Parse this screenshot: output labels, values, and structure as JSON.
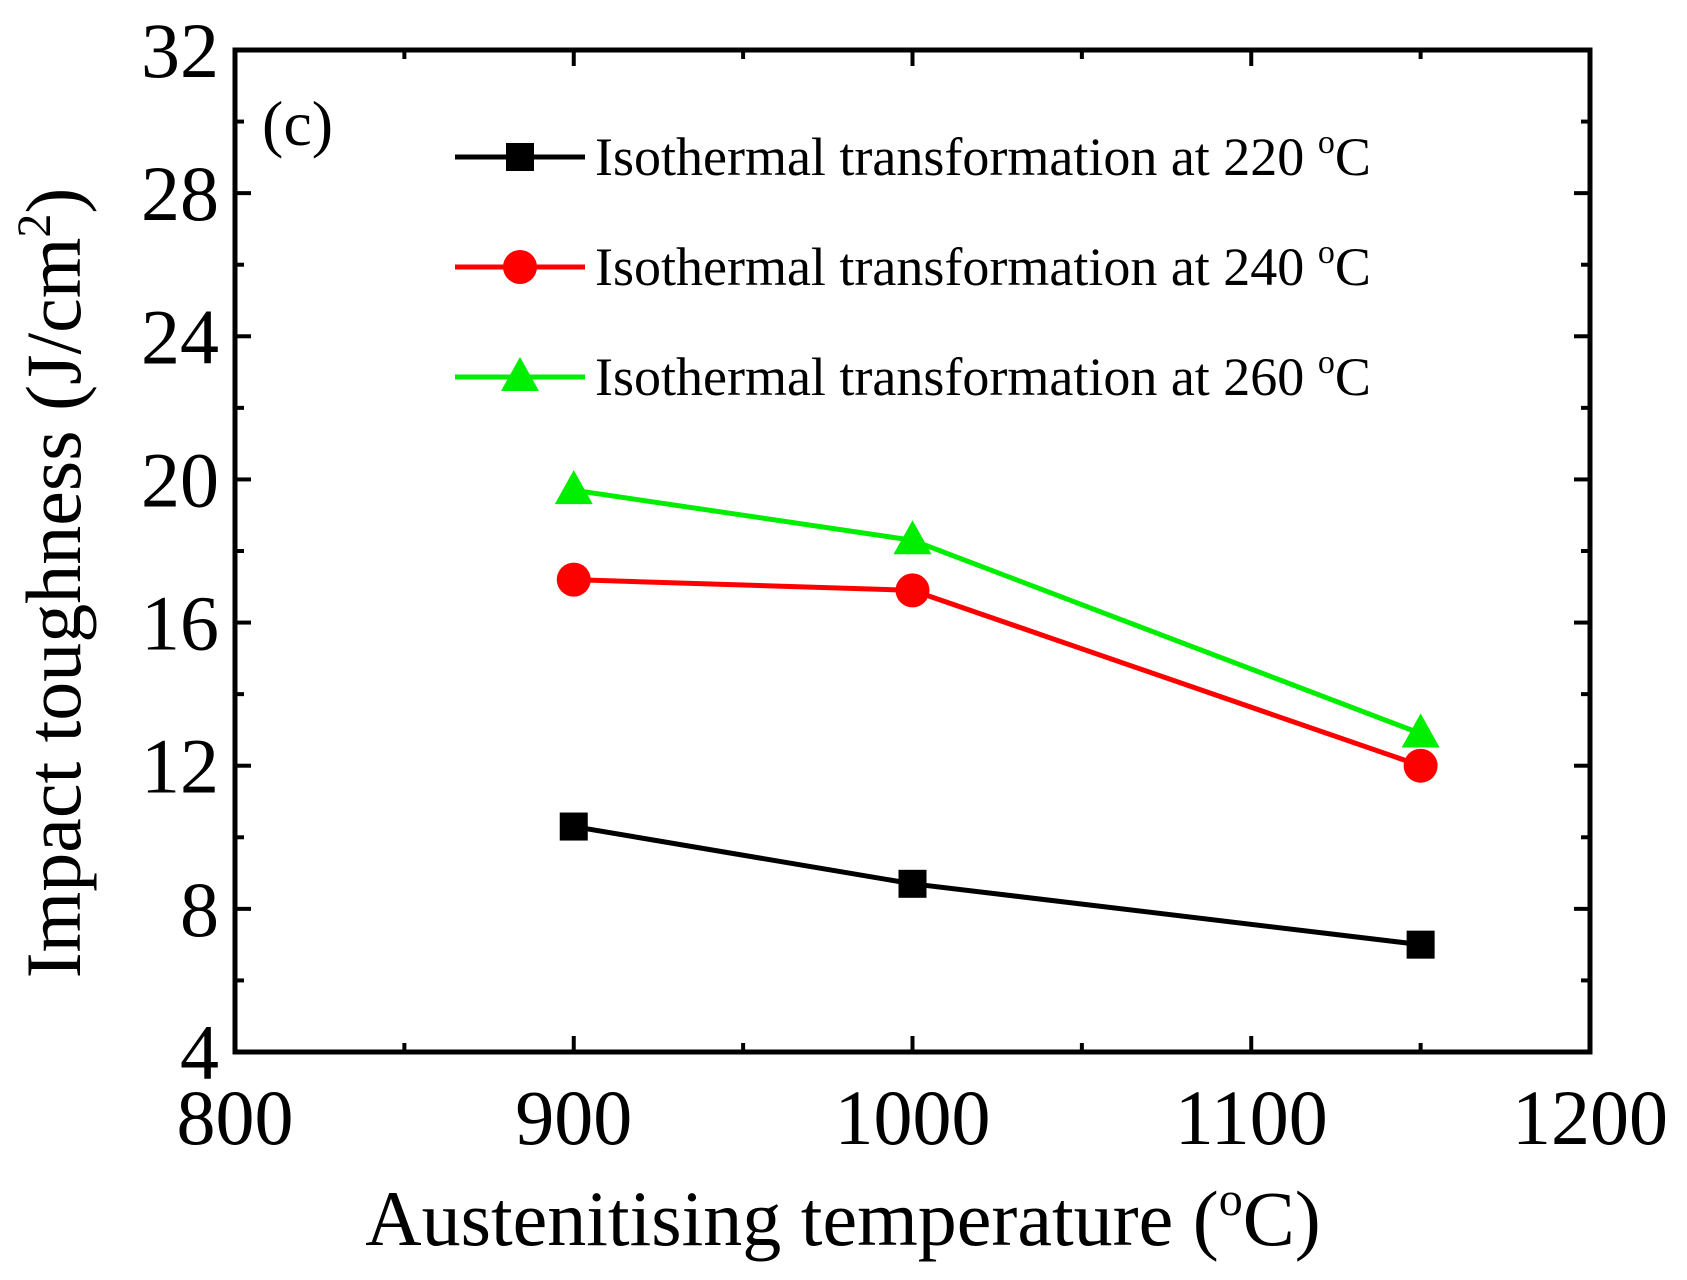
{
  "chart_data": {
    "type": "line",
    "panel_label": "(c)",
    "xlabel": {
      "main": "Austenitising temperature (",
      "sup": "o",
      "unit": "C)"
    },
    "ylabel": {
      "main": "Impact toughness (J/cm",
      "sup": "2",
      "end": ")"
    },
    "xlim": [
      800,
      1200
    ],
    "ylim": [
      4,
      32
    ],
    "x_ticks": [
      800,
      900,
      1000,
      1100,
      1200
    ],
    "x_minor_ticks": [
      850,
      950,
      1050,
      1150
    ],
    "y_ticks": [
      4,
      8,
      12,
      16,
      20,
      24,
      28,
      32
    ],
    "y_minor_ticks": [
      6,
      10,
      14,
      18,
      22,
      26,
      30
    ],
    "x": [
      900,
      1000,
      1150
    ],
    "legend_position": "top-right",
    "series": [
      {
        "name_main": "Isothermal transformation at 220 ",
        "name_sup": "o",
        "name_unit": "C",
        "color": "#000000",
        "marker": "square",
        "values": [
          10.3,
          8.7,
          7.0
        ]
      },
      {
        "name_main": "Isothermal transformation at 240 ",
        "name_sup": "o",
        "name_unit": "C",
        "color": "#ff0000",
        "marker": "circle",
        "values": [
          17.2,
          16.9,
          12.0
        ]
      },
      {
        "name_main": "Isothermal transformation at 260 ",
        "name_sup": "o",
        "name_unit": "C",
        "color": "#00ee00",
        "marker": "triangle",
        "values": [
          19.7,
          18.3,
          12.9
        ]
      }
    ]
  }
}
